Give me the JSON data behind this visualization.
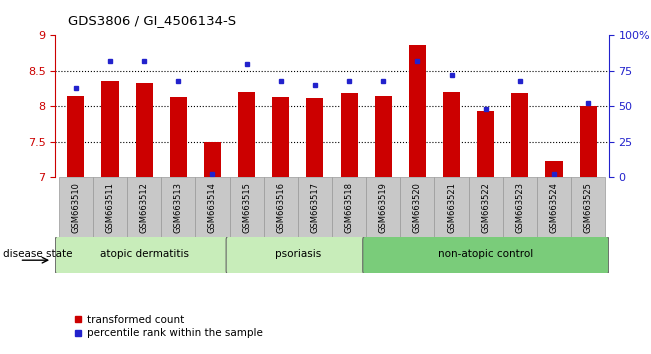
{
  "title": "GDS3806 / GI_4506134-S",
  "samples": [
    "GSM663510",
    "GSM663511",
    "GSM663512",
    "GSM663513",
    "GSM663514",
    "GSM663515",
    "GSM663516",
    "GSM663517",
    "GSM663518",
    "GSM663519",
    "GSM663520",
    "GSM663521",
    "GSM663522",
    "GSM663523",
    "GSM663524",
    "GSM663525"
  ],
  "red_values": [
    8.15,
    8.35,
    8.33,
    8.13,
    7.5,
    8.2,
    8.13,
    8.12,
    8.18,
    8.15,
    8.87,
    8.2,
    7.93,
    8.18,
    7.22,
    8.0
  ],
  "blue_values": [
    63,
    82,
    82,
    68,
    2,
    80,
    68,
    65,
    68,
    68,
    82,
    72,
    48,
    68,
    2,
    52
  ],
  "ylim_left": [
    7,
    9
  ],
  "ylim_right": [
    0,
    100
  ],
  "yticks_left": [
    7,
    7.5,
    8,
    8.5,
    9
  ],
  "yticks_right": [
    0,
    25,
    50,
    75,
    100
  ],
  "ytick_labels_right": [
    "0",
    "25",
    "50",
    "75",
    "100%"
  ],
  "group_data": [
    {
      "label": "atopic dermatitis",
      "start": 0,
      "end": 4,
      "color": "#c8edba"
    },
    {
      "label": "psoriasis",
      "start": 5,
      "end": 8,
      "color": "#c8edba"
    },
    {
      "label": "non-atopic control",
      "start": 9,
      "end": 15,
      "color": "#7acc7a"
    }
  ],
  "disease_state_label": "disease state",
  "bar_color_red": "#cc0000",
  "bar_color_blue": "#2222cc",
  "legend_red": "transformed count",
  "legend_blue": "percentile rank within the sample",
  "background_color": "#ffffff",
  "xtick_bg_color": "#c8c8c8",
  "xtick_border_color": "#999999",
  "grid_yticks": [
    7.5,
    8.0,
    8.5
  ]
}
